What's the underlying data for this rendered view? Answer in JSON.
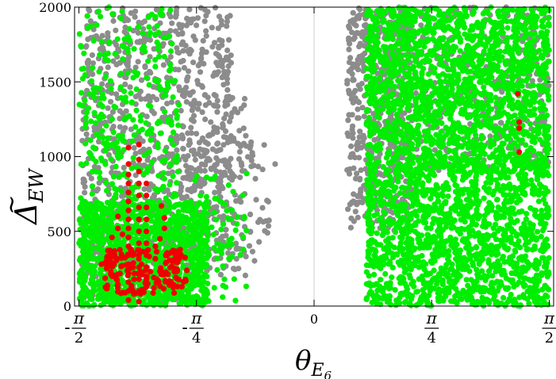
{
  "chart_data": {
    "type": "scatter",
    "xlabel": "θ",
    "xlabel_sub": "E",
    "xlabel_sub2": "6",
    "ylabel": "Δ",
    "ylabel_sub": "EW",
    "xlim": [
      -1.6,
      1.6
    ],
    "ylim": [
      0,
      2000
    ],
    "x_ticks": [
      {
        "value": -1.5708,
        "label": "-π/2",
        "num": "π",
        "den": "2",
        "sign": "-"
      },
      {
        "value": -0.7854,
        "label": "-π/4",
        "num": "π",
        "den": "4",
        "sign": "-"
      },
      {
        "value": 0,
        "label": "0"
      },
      {
        "value": 0.7854,
        "label": "π/4",
        "num": "π",
        "den": "4",
        "sign": ""
      },
      {
        "value": 1.5708,
        "label": "π/2",
        "num": "π",
        "den": "2",
        "sign": ""
      }
    ],
    "y_ticks": [
      {
        "value": 0,
        "label": "0"
      },
      {
        "value": 500,
        "label": "500"
      },
      {
        "value": 1000,
        "label": "1000"
      },
      {
        "value": 1500,
        "label": "1500"
      },
      {
        "value": 2000,
        "label": "2000"
      }
    ],
    "grid": false,
    "vertical_reference_line_x": 0,
    "series": [
      {
        "color": "#8c8c8c",
        "regions": [
          {
            "x": [
              -1.55,
              -0.55
            ],
            "y": [
              300,
              2000
            ],
            "n": 900
          },
          {
            "x": [
              -1.55,
              -0.9
            ],
            "y": [
              0,
              600
            ],
            "n": 150
          },
          {
            "x": [
              -0.85,
              -0.45
            ],
            "y": [
              200,
              1400
            ],
            "n": 120
          },
          {
            "x": [
              -0.55,
              -0.3
            ],
            "y": [
              300,
              1100
            ],
            "n": 50
          },
          {
            "x": [
              0.22,
              0.65
            ],
            "y": [
              500,
              2000
            ],
            "n": 500
          },
          {
            "x": [
              0.5,
              1.57
            ],
            "y": [
              900,
              2000
            ],
            "n": 450
          }
        ],
        "points": [
          [
            -0.26,
            950
          ]
        ]
      },
      {
        "color": "#00ee00",
        "regions": [
          {
            "x": [
              -1.57,
              -0.7
            ],
            "y": [
              0,
              700
            ],
            "n": 1200
          },
          {
            "x": [
              -1.57,
              -0.9
            ],
            "y": [
              700,
              2000
            ],
            "n": 300
          },
          {
            "x": [
              -0.8,
              -0.45
            ],
            "y": [
              0,
              900
            ],
            "n": 70
          },
          {
            "x": [
              0.35,
              1.57
            ],
            "y": [
              0,
              2000
            ],
            "n": 3200
          }
        ],
        "points": []
      },
      {
        "color": "#ee0000",
        "regions": [
          {
            "x": [
              -1.4,
              -0.85
            ],
            "y": [
              80,
              380
            ],
            "n": 160
          }
        ],
        "points": [
          [
            -1.24,
            1060
          ],
          [
            -1.24,
            950
          ],
          [
            -1.24,
            880
          ],
          [
            -1.24,
            820
          ],
          [
            -1.24,
            760
          ],
          [
            -1.24,
            700
          ],
          [
            -1.24,
            640
          ],
          [
            -1.24,
            580
          ],
          [
            -1.24,
            520
          ],
          [
            -1.24,
            460
          ],
          [
            -1.24,
            400
          ],
          [
            -1.24,
            340
          ],
          [
            -1.24,
            280
          ],
          [
            -1.24,
            220
          ],
          [
            -1.24,
            160
          ],
          [
            -1.24,
            100
          ],
          [
            -1.24,
            40
          ],
          [
            -1.17,
            1080
          ],
          [
            -1.17,
            980
          ],
          [
            -1.17,
            900
          ],
          [
            -1.17,
            820
          ],
          [
            -1.17,
            740
          ],
          [
            -1.17,
            660
          ],
          [
            -1.17,
            580
          ],
          [
            -1.17,
            500
          ],
          [
            -1.17,
            420
          ],
          [
            -1.17,
            340
          ],
          [
            -1.17,
            260
          ],
          [
            -1.17,
            180
          ],
          [
            -1.17,
            100
          ],
          [
            -1.17,
            30
          ],
          [
            -1.12,
            820
          ],
          [
            -1.12,
            740
          ],
          [
            -1.12,
            660
          ],
          [
            -1.12,
            580
          ],
          [
            -1.12,
            500
          ],
          [
            -1.12,
            420
          ],
          [
            -1.12,
            340
          ],
          [
            -1.12,
            260
          ],
          [
            -1.12,
            180
          ],
          [
            -1.28,
            480
          ],
          [
            -1.31,
            600
          ],
          [
            -1.31,
            520
          ],
          [
            -1.35,
            460
          ],
          [
            -1.36,
            300
          ],
          [
            -1.42,
            280
          ],
          [
            -1.02,
            670
          ],
          [
            -1.0,
            590
          ],
          [
            -1.0,
            520
          ],
          [
            -1.03,
            450
          ],
          [
            -1.06,
            400
          ],
          [
            1.36,
            1420
          ],
          [
            1.37,
            1230
          ],
          [
            1.37,
            1190
          ],
          [
            1.37,
            1030
          ]
        ]
      }
    ]
  }
}
